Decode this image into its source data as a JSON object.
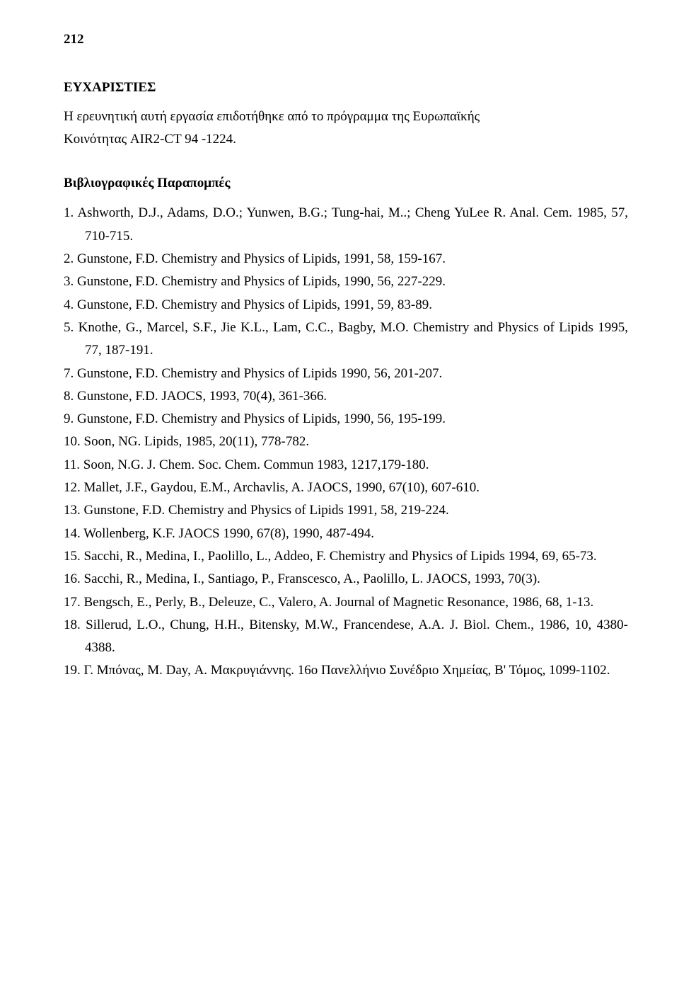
{
  "page": {
    "number": "212",
    "background_color": "#ffffff",
    "text_color": "#000000",
    "font_family": "Times New Roman",
    "base_font_size": 19
  },
  "acknowledgements": {
    "heading": "ΕΥΧΑΡΙΣΤΙΕΣ",
    "line1": "Η ερευνητική αυτή εργασία επιδοτήθηκε από το πρόγραμμα της Ευρωπαϊκής",
    "line2": "Κοινότητας AIR2-CT 94 -1224."
  },
  "references": {
    "heading": "Βιβλιογραφικές Παραπομπές",
    "items": [
      "1. Ashworth, D.J., Adams, D.O.; Yunwen, B.G.; Tung-hai, M..; Cheng YuLee R. Anal. Cem. 1985, 57, 710-715.",
      "2. Gunstone, F.D. Chemistry and Physics of Lipids, 1991, 58, 159-167.",
      "3. Gunstone, F.D. Chemistry and Physics of Lipids, 1990, 56, 227-229.",
      "4. Gunstone, F.D. Chemistry and Physics of Lipids, 1991, 59, 83-89.",
      "5. Knothe, G., Marcel, S.F., Jie K.L., Lam, C.C., Bagby, M.O. Chemistry and Physics of Lipids 1995, 77, 187-191.",
      "7. Gunstone, F.D. Chemistry and Physics of Lipids 1990, 56, 201-207.",
      "8. Gunstone, F.D. JAOCS, 1993, 70(4), 361-366.",
      "9. Gunstone, F.D. Chemistry and Physics of Lipids, 1990, 56, 195-199.",
      "10. Soon, NG. Lipids, 1985, 20(11), 778-782.",
      "11. Soon, N.G. J. Chem. Soc. Chem. Commun 1983, 1217,179-180.",
      "12. Mallet, J.F., Gaydou, E.M., Archavlis, A. JAOCS, 1990, 67(10), 607-610.",
      "13. Gunstone, F.D. Chemistry and Physics of Lipids 1991, 58, 219-224.",
      "14. Wollenberg, K.F. JAOCS 1990, 67(8), 1990, 487-494.",
      "15. Sacchi, R., Medina, I., Paolillo, L., Addeo, F. Chemistry and Physics of Lipids 1994, 69, 65-73.",
      "16. Sacchi, R., Medina, I., Santiago, P., Franscesco, A., Paolillo, L. JAOCS, 1993, 70(3).",
      "17. Bengsch, E., Perly, B., Deleuze, C., Valero, A. Journal of Magnetic Resonance, 1986, 68, 1-13.",
      "18. Sillerud, L.O., Chung, H.H., Bitensky, M.W., Francendese, A.A. J. Biol. Chem., 1986, 10, 4380-4388.",
      "19. Γ. Μπόνας, Μ. Day, Α. Μακρυγιάννης. 16ο Πανελλήνιο Συνέδριο Χημείας, Β' Τόμος, 1099-1102."
    ]
  }
}
